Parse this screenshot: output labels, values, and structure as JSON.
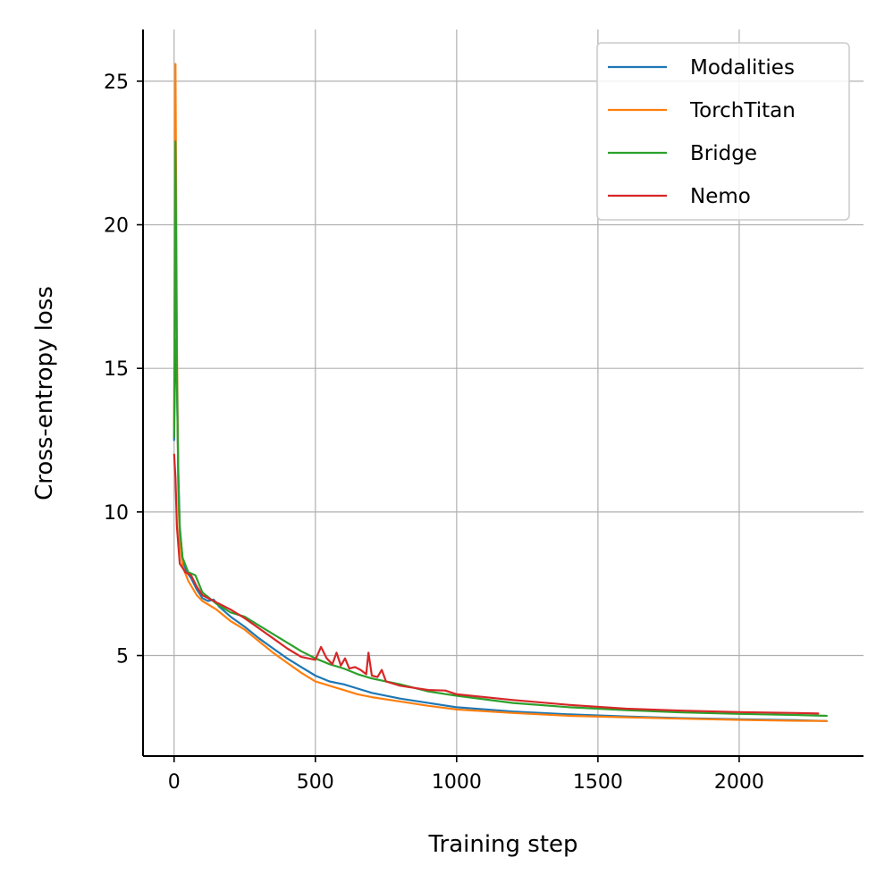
{
  "chart_data": {
    "type": "line",
    "title": "",
    "xlabel": "Training step",
    "ylabel": "Cross-entropy loss",
    "xlim": [
      -110,
      2440
    ],
    "ylim": [
      1.5,
      26.8
    ],
    "xticks": [
      0,
      500,
      1000,
      1500,
      2000
    ],
    "yticks": [
      5,
      10,
      15,
      20,
      25
    ],
    "xtick_labels": [
      "0",
      "500",
      "1000",
      "1500",
      "2000"
    ],
    "ytick_labels": [
      "5",
      "10",
      "15",
      "20",
      "25"
    ],
    "grid": true,
    "legend": "top-right",
    "series": [
      {
        "name": "Modalities",
        "color": "#1f77b4",
        "points": [
          [
            0,
            12.5
          ],
          [
            5,
            16
          ],
          [
            10,
            14.5
          ],
          [
            15,
            11.4
          ],
          [
            20,
            9.5
          ],
          [
            30,
            8.3
          ],
          [
            45,
            7.9
          ],
          [
            60,
            7.7
          ],
          [
            80,
            7.3
          ],
          [
            100,
            7.0
          ],
          [
            120,
            6.9
          ],
          [
            140,
            6.95
          ],
          [
            160,
            6.7
          ],
          [
            200,
            6.35
          ],
          [
            250,
            6.0
          ],
          [
            300,
            5.6
          ],
          [
            350,
            5.25
          ],
          [
            400,
            4.9
          ],
          [
            450,
            4.6
          ],
          [
            500,
            4.3
          ],
          [
            550,
            4.1
          ],
          [
            600,
            4.0
          ],
          [
            650,
            3.85
          ],
          [
            700,
            3.7
          ],
          [
            800,
            3.5
          ],
          [
            900,
            3.35
          ],
          [
            1000,
            3.2
          ],
          [
            1200,
            3.05
          ],
          [
            1400,
            2.95
          ],
          [
            1600,
            2.88
          ],
          [
            1800,
            2.82
          ],
          [
            2000,
            2.78
          ],
          [
            2200,
            2.75
          ],
          [
            2310,
            2.72
          ]
        ]
      },
      {
        "name": "TorchTitan",
        "color": "#ff7f0e",
        "points": [
          [
            0,
            13
          ],
          [
            5,
            25.6
          ],
          [
            10,
            16
          ],
          [
            15,
            10.6
          ],
          [
            20,
            9.0
          ],
          [
            30,
            8.1
          ],
          [
            50,
            7.6
          ],
          [
            80,
            7.1
          ],
          [
            100,
            6.9
          ],
          [
            150,
            6.6
          ],
          [
            200,
            6.2
          ],
          [
            250,
            5.9
          ],
          [
            300,
            5.5
          ],
          [
            350,
            5.1
          ],
          [
            400,
            4.75
          ],
          [
            450,
            4.4
          ],
          [
            500,
            4.1
          ],
          [
            550,
            3.95
          ],
          [
            600,
            3.8
          ],
          [
            650,
            3.65
          ],
          [
            700,
            3.55
          ],
          [
            800,
            3.4
          ],
          [
            900,
            3.25
          ],
          [
            1000,
            3.12
          ],
          [
            1200,
            3.0
          ],
          [
            1400,
            2.9
          ],
          [
            1600,
            2.85
          ],
          [
            1800,
            2.8
          ],
          [
            2000,
            2.76
          ],
          [
            2200,
            2.73
          ],
          [
            2310,
            2.72
          ]
        ]
      },
      {
        "name": "Bridge",
        "color": "#2ca02c",
        "points": [
          [
            0,
            12.6
          ],
          [
            5,
            22.9
          ],
          [
            10,
            15
          ],
          [
            15,
            11
          ],
          [
            20,
            9.4
          ],
          [
            30,
            8.4
          ],
          [
            50,
            7.9
          ],
          [
            75,
            7.8
          ],
          [
            100,
            7.2
          ],
          [
            150,
            6.8
          ],
          [
            200,
            6.5
          ],
          [
            250,
            6.35
          ],
          [
            300,
            6.05
          ],
          [
            350,
            5.75
          ],
          [
            400,
            5.45
          ],
          [
            450,
            5.15
          ],
          [
            500,
            4.9
          ],
          [
            550,
            4.7
          ],
          [
            600,
            4.55
          ],
          [
            650,
            4.35
          ],
          [
            700,
            4.2
          ],
          [
            750,
            4.1
          ],
          [
            800,
            4.0
          ],
          [
            900,
            3.75
          ],
          [
            1000,
            3.6
          ],
          [
            1200,
            3.35
          ],
          [
            1400,
            3.2
          ],
          [
            1600,
            3.1
          ],
          [
            1800,
            3.02
          ],
          [
            2000,
            2.97
          ],
          [
            2200,
            2.93
          ],
          [
            2310,
            2.9
          ]
        ]
      },
      {
        "name": "Nemo",
        "color": "#d62728",
        "points": [
          [
            0,
            12
          ],
          [
            5,
            11.2
          ],
          [
            10,
            9.5
          ],
          [
            20,
            8.2
          ],
          [
            40,
            7.9
          ],
          [
            60,
            7.8
          ],
          [
            80,
            7.4
          ],
          [
            100,
            7.1
          ],
          [
            150,
            6.85
          ],
          [
            200,
            6.6
          ],
          [
            250,
            6.3
          ],
          [
            300,
            5.95
          ],
          [
            350,
            5.6
          ],
          [
            400,
            5.25
          ],
          [
            450,
            4.95
          ],
          [
            500,
            4.85
          ],
          [
            520,
            5.3
          ],
          [
            540,
            4.9
          ],
          [
            560,
            4.7
          ],
          [
            575,
            5.1
          ],
          [
            590,
            4.65
          ],
          [
            605,
            4.9
          ],
          [
            620,
            4.55
          ],
          [
            640,
            4.6
          ],
          [
            660,
            4.5
          ],
          [
            680,
            4.35
          ],
          [
            688,
            5.1
          ],
          [
            700,
            4.3
          ],
          [
            720,
            4.25
          ],
          [
            735,
            4.5
          ],
          [
            750,
            4.1
          ],
          [
            800,
            3.95
          ],
          [
            900,
            3.8
          ],
          [
            960,
            3.78
          ],
          [
            1000,
            3.65
          ],
          [
            1200,
            3.45
          ],
          [
            1400,
            3.28
          ],
          [
            1600,
            3.15
          ],
          [
            1800,
            3.08
          ],
          [
            2000,
            3.03
          ],
          [
            2200,
            3.0
          ],
          [
            2280,
            2.98
          ]
        ]
      }
    ]
  }
}
